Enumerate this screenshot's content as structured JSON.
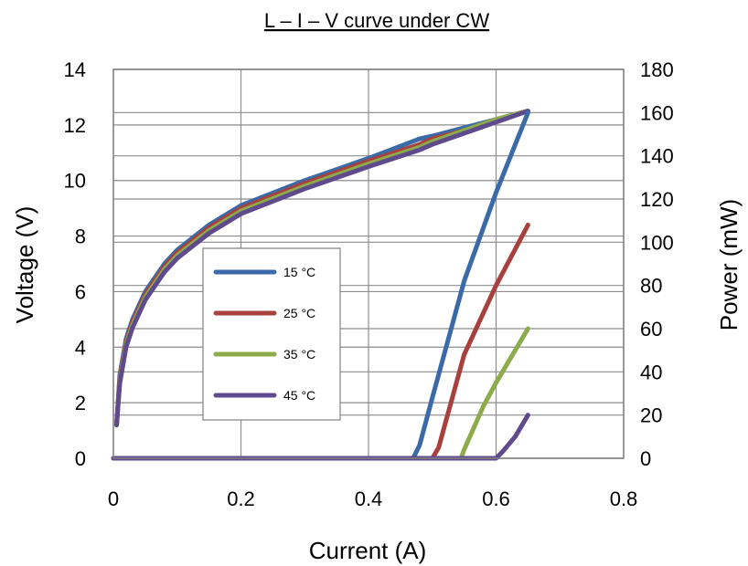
{
  "chart_data": {
    "type": "line",
    "title": "L – I – V curve under CW",
    "xlabel": "Current (A)",
    "ylabel": "Voltage (V)",
    "y2label": "Power (mW)",
    "xlim": [
      0,
      0.8
    ],
    "ylim": [
      0,
      14
    ],
    "y2lim": [
      0,
      180
    ],
    "xticks": [
      "0",
      "0.2",
      "0.4",
      "0.6",
      "0.8"
    ],
    "yticks": [
      "0",
      "2",
      "4",
      "6",
      "8",
      "10",
      "12",
      "14"
    ],
    "y2ticks": [
      "0",
      "20",
      "40",
      "60",
      "80",
      "100",
      "120",
      "140",
      "160",
      "180"
    ],
    "grid": true,
    "legend_position": "center-left",
    "legend": [
      "15 °C",
      "25 °C",
      "35 °C",
      "45 °C"
    ],
    "series": [
      {
        "name": "15 °C",
        "color": "#3b6aa8",
        "voltage": {
          "x": [
            0.005,
            0.01,
            0.02,
            0.03,
            0.05,
            0.08,
            0.1,
            0.15,
            0.2,
            0.3,
            0.4,
            0.48,
            0.5,
            0.55,
            0.6,
            0.65
          ],
          "y": [
            1.2,
            3.0,
            4.3,
            5.0,
            6.0,
            7.0,
            7.5,
            8.4,
            9.1,
            10.0,
            10.8,
            11.5,
            11.6,
            11.9,
            12.2,
            12.5
          ]
        },
        "power": {
          "x": [
            0,
            0.47,
            0.48,
            0.5,
            0.55,
            0.6,
            0.65
          ],
          "y": [
            0,
            0,
            6,
            28,
            82,
            123,
            160
          ]
        }
      },
      {
        "name": "25 °C",
        "color": "#a8403d",
        "voltage": {
          "x": [
            0.005,
            0.01,
            0.02,
            0.03,
            0.05,
            0.08,
            0.1,
            0.15,
            0.2,
            0.3,
            0.4,
            0.48,
            0.5,
            0.55,
            0.6,
            0.65
          ],
          "y": [
            1.2,
            2.9,
            4.2,
            4.9,
            5.9,
            6.9,
            7.4,
            8.3,
            9.0,
            9.9,
            10.7,
            11.3,
            11.5,
            11.8,
            12.2,
            12.5
          ]
        },
        "power": {
          "x": [
            0,
            0.5,
            0.51,
            0.55,
            0.6,
            0.65
          ],
          "y": [
            0,
            0,
            5,
            48,
            80,
            108
          ]
        }
      },
      {
        "name": "35 °C",
        "color": "#8cab4a",
        "voltage": {
          "x": [
            0.005,
            0.01,
            0.02,
            0.03,
            0.05,
            0.08,
            0.1,
            0.15,
            0.2,
            0.3,
            0.4,
            0.48,
            0.5,
            0.55,
            0.6,
            0.65
          ],
          "y": [
            1.2,
            2.8,
            4.1,
            4.8,
            5.8,
            6.8,
            7.3,
            8.2,
            8.9,
            9.8,
            10.6,
            11.2,
            11.4,
            11.8,
            12.2,
            12.5
          ]
        },
        "power": {
          "x": [
            0,
            0.545,
            0.55,
            0.58,
            0.6,
            0.65
          ],
          "y": [
            0,
            0,
            4,
            24,
            35,
            60
          ]
        }
      },
      {
        "name": "45 °C",
        "color": "#5e4a8c",
        "voltage": {
          "x": [
            0.005,
            0.01,
            0.02,
            0.03,
            0.05,
            0.08,
            0.1,
            0.15,
            0.2,
            0.3,
            0.4,
            0.48,
            0.5,
            0.55,
            0.6,
            0.65
          ],
          "y": [
            1.2,
            2.7,
            4.0,
            4.7,
            5.7,
            6.7,
            7.2,
            8.1,
            8.8,
            9.7,
            10.5,
            11.1,
            11.3,
            11.7,
            12.1,
            12.5
          ]
        },
        "power": {
          "x": [
            0,
            0.6,
            0.61,
            0.63,
            0.65
          ],
          "y": [
            0,
            0,
            3,
            10,
            20
          ]
        }
      }
    ]
  }
}
